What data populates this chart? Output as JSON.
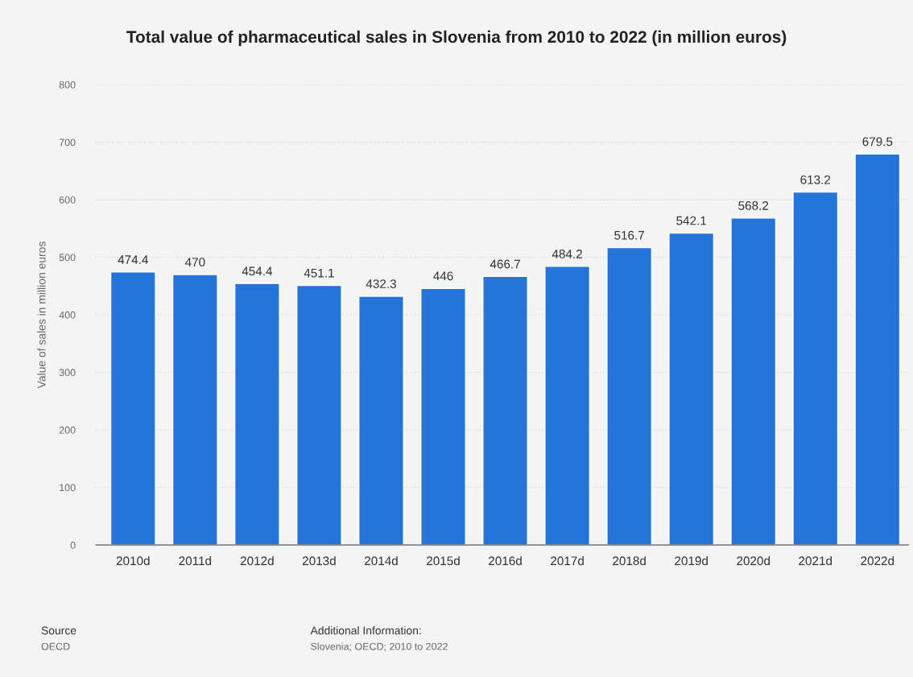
{
  "chart_data": {
    "type": "bar",
    "title": "Total value of pharmaceutical sales in Slovenia from 2010 to 2022 (in million euros)",
    "ylabel": "Value of sales in million euros",
    "categories": [
      "2010d",
      "2011d",
      "2012d",
      "2013d",
      "2014d",
      "2015d",
      "2016d",
      "2017d",
      "2018d",
      "2019d",
      "2020d",
      "2021d",
      "2022d"
    ],
    "values": [
      474.4,
      470,
      454.4,
      451.1,
      432.3,
      446,
      466.7,
      484.2,
      516.7,
      542.1,
      568.2,
      613.2,
      679.5
    ],
    "color": "#2574d9",
    "ylim": [
      0,
      800
    ],
    "yticks": [
      0,
      100,
      200,
      300,
      400,
      500,
      600,
      700,
      800
    ],
    "grid": "y",
    "data_labels": true,
    "legend": false,
    "annotations": [
      "Source",
      "OECD",
      "Additional Information:",
      "Slovenia; OECD; 2010 to 2022"
    ]
  }
}
